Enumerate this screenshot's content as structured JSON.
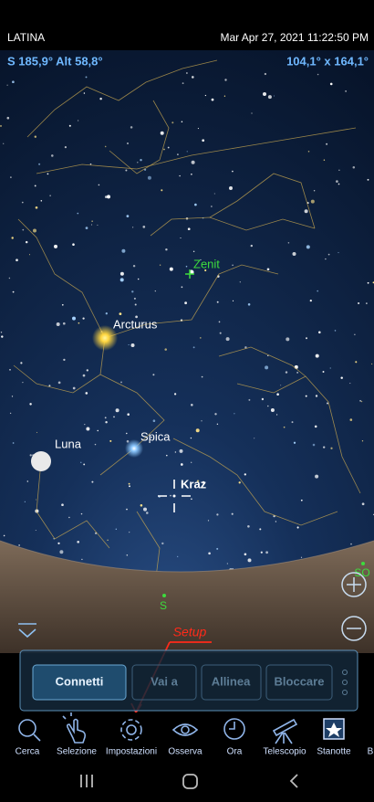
{
  "status_bar": {
    "location": "LATINA",
    "datetime": "Mar Apr 27, 2021 11:22:50 PM"
  },
  "sky_info": {
    "position": "S 185,9° Alt 58,8°",
    "field": "104,1° x 164,1°"
  },
  "sky_labels": [
    "Zenit",
    "Arcturus",
    "Spica",
    "Luna",
    "Kraz"
  ],
  "compass": [
    "S",
    "SO"
  ],
  "annotation": "Setup",
  "action_buttons": [
    "Connetti",
    "Vai a",
    "Allinea",
    "Bloccare"
  ],
  "toolbar": [
    "Cerca",
    "Selezione",
    "Impostazioni",
    "Osserva",
    "Ora",
    "Telescopio",
    "Stanotte",
    "B"
  ]
}
